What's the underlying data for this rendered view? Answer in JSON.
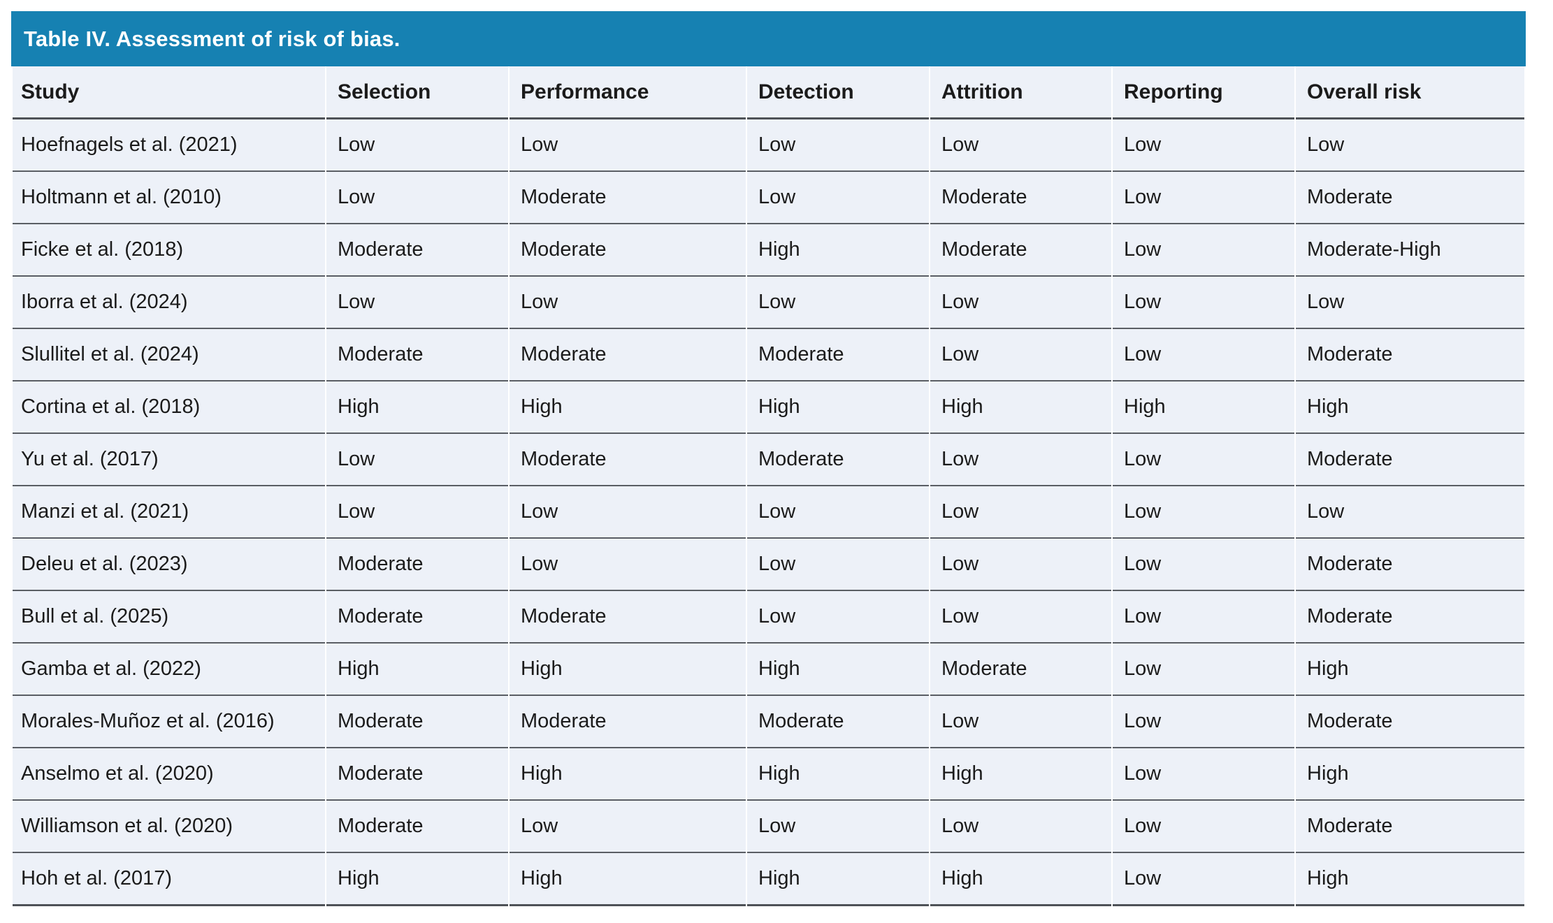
{
  "colors": {
    "header_bar": "#1681b2",
    "row_background": "#edf1f8",
    "divider": "#5a5e64",
    "title_text": "#ffffff",
    "body_text": "#1b1b1b"
  },
  "table": {
    "title": "Table IV. Assessment of risk of bias.",
    "columns": [
      "Study",
      "Selection",
      "Performance",
      "Detection",
      "Attrition",
      "Reporting",
      "Overall risk"
    ],
    "rows": [
      [
        "Hoefnagels et al. (2021)",
        "Low",
        "Low",
        "Low",
        "Low",
        "Low",
        "Low"
      ],
      [
        "Holtmann et al. (2010)",
        "Low",
        "Moderate",
        "Low",
        "Moderate",
        "Low",
        "Moderate"
      ],
      [
        "Ficke et al. (2018)",
        "Moderate",
        "Moderate",
        "High",
        "Moderate",
        "Low",
        "Moderate-High"
      ],
      [
        "Iborra et al. (2024)",
        "Low",
        "Low",
        "Low",
        "Low",
        "Low",
        "Low"
      ],
      [
        "Slullitel et al. (2024)",
        "Moderate",
        "Moderate",
        "Moderate",
        "Low",
        "Low",
        "Moderate"
      ],
      [
        "Cortina et al. (2018)",
        "High",
        "High",
        "High",
        "High",
        "High",
        "High"
      ],
      [
        "Yu et al. (2017)",
        "Low",
        "Moderate",
        "Moderate",
        "Low",
        "Low",
        "Moderate"
      ],
      [
        "Manzi et al. (2021)",
        "Low",
        "Low",
        "Low",
        "Low",
        "Low",
        "Low"
      ],
      [
        "Deleu et al. (2023)",
        "Moderate",
        "Low",
        "Low",
        "Low",
        "Low",
        "Moderate"
      ],
      [
        "Bull et al. (2025)",
        "Moderate",
        "Moderate",
        "Low",
        "Low",
        "Low",
        "Moderate"
      ],
      [
        "Gamba et al. (2022)",
        "High",
        "High",
        "High",
        "Moderate",
        "Low",
        "High"
      ],
      [
        "Morales-Muñoz et al. (2016)",
        "Moderate",
        "Moderate",
        "Moderate",
        "Low",
        "Low",
        "Moderate"
      ],
      [
        "Anselmo et al. (2020)",
        "Moderate",
        "High",
        "High",
        "High",
        "Low",
        "High"
      ],
      [
        "Williamson et al. (2020)",
        "Moderate",
        "Low",
        "Low",
        "Low",
        "Low",
        "Moderate"
      ],
      [
        "Hoh et al. (2017)",
        "High",
        "High",
        "High",
        "High",
        "Low",
        "High"
      ]
    ]
  }
}
